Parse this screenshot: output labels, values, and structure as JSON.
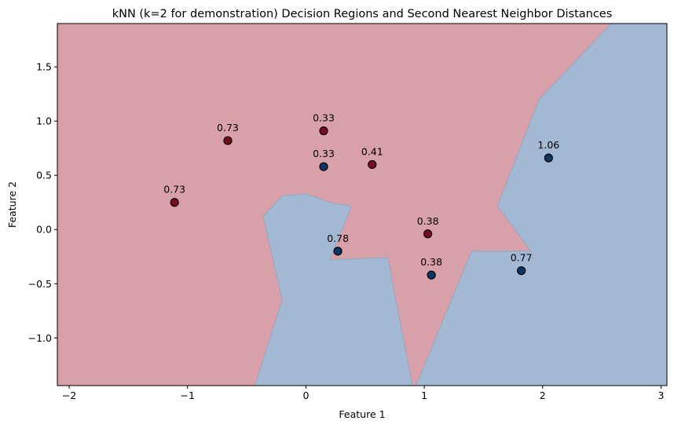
{
  "chart_data": {
    "type": "scatter",
    "title": "kNN (k=2 for demonstration) Decision Regions and Second Nearest Neighbor Distances",
    "xlabel": "Feature 1",
    "ylabel": "Feature 2",
    "xlim": [
      -2.1,
      3.05
    ],
    "ylim": [
      -1.44,
      1.9
    ],
    "xticks": [
      -2,
      -1,
      0,
      1,
      2,
      3
    ],
    "xtick_labels": [
      "−2",
      "−1",
      "0",
      "1",
      "2",
      "3"
    ],
    "yticks": [
      -1.0,
      -0.5,
      0.0,
      0.5,
      1.0,
      1.5
    ],
    "ytick_labels": [
      "−1.0",
      "−0.5",
      "0.0",
      "0.5",
      "1.0",
      "1.5"
    ],
    "grid": false,
    "colors": {
      "class0_region": "#d8a0a9",
      "class1_region": "#a3b9d3",
      "class0_point": "#7a0a1e",
      "class1_point": "#0b3564",
      "point_edge": "#000000"
    },
    "points": [
      {
        "x": -0.66,
        "y": 0.82,
        "class": 0,
        "label": "0.73"
      },
      {
        "x": -1.11,
        "y": 0.25,
        "class": 0,
        "label": "0.73"
      },
      {
        "x": 0.15,
        "y": 0.91,
        "class": 0,
        "label": "0.33"
      },
      {
        "x": 0.15,
        "y": 0.58,
        "class": 1,
        "label": "0.33"
      },
      {
        "x": 0.56,
        "y": 0.6,
        "class": 0,
        "label": "0.41"
      },
      {
        "x": 2.05,
        "y": 0.66,
        "class": 1,
        "label": "1.06"
      },
      {
        "x": 1.03,
        "y": -0.04,
        "class": 0,
        "label": "0.38"
      },
      {
        "x": 0.27,
        "y": -0.2,
        "class": 1,
        "label": "0.78"
      },
      {
        "x": 1.06,
        "y": -0.42,
        "class": 1,
        "label": "0.38"
      },
      {
        "x": 1.82,
        "y": -0.38,
        "class": 1,
        "label": "0.77"
      }
    ],
    "regions_class1": [
      [
        [
          -0.43,
          -1.44
        ],
        [
          -0.2,
          -0.65
        ],
        [
          -0.36,
          0.12
        ],
        [
          -0.2,
          0.31
        ],
        [
          0.0,
          0.33
        ],
        [
          0.2,
          0.25
        ],
        [
          0.36,
          0.22
        ],
        [
          0.38,
          0.2
        ],
        [
          0.2,
          -0.28
        ],
        [
          0.69,
          -0.26
        ],
        [
          0.9,
          -1.44
        ]
      ],
      [
        [
          0.93,
          -1.44
        ],
        [
          1.4,
          -0.2
        ],
        [
          1.9,
          -0.2
        ],
        [
          1.62,
          0.22
        ],
        [
          1.97,
          1.2
        ],
        [
          2.58,
          1.9
        ],
        [
          3.05,
          1.9
        ],
        [
          3.05,
          -1.44
        ]
      ]
    ]
  }
}
